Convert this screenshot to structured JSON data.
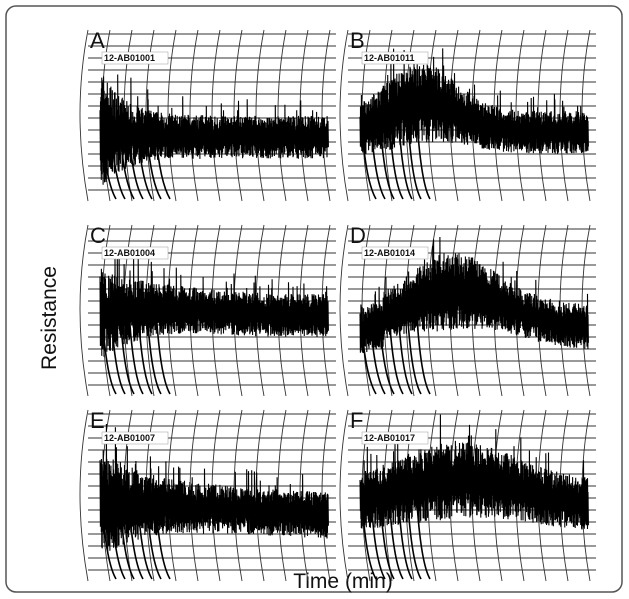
{
  "figure": {
    "y_label": "Resistance",
    "x_label": "Time (min)",
    "panels": [
      {
        "letter": "A",
        "sample": "12-AB01001"
      },
      {
        "letter": "B",
        "sample": "12-AB01011"
      },
      {
        "letter": "C",
        "sample": "12-AB01004"
      },
      {
        "letter": "D",
        "sample": "12-AB01014"
      },
      {
        "letter": "E",
        "sample": "12-AB01007"
      },
      {
        "letter": "F",
        "sample": "12-AB01017"
      }
    ]
  }
}
